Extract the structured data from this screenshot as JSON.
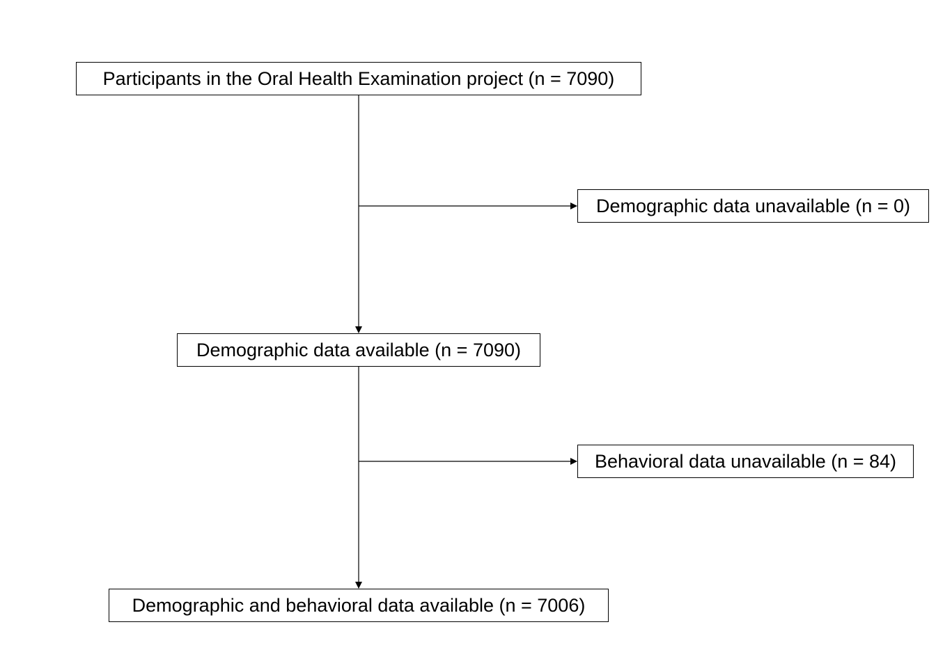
{
  "flowchart": {
    "participants": "Participants in the Oral Health Examination project (n = 7090)",
    "demographic_unavailable": "Demographic data unavailable (n = 0)",
    "demographic_available": "Demographic data available (n = 7090)",
    "behavioral_unavailable": "Behavioral data unavailable (n = 84)",
    "final_sample": "Demographic and behavioral data available (n = 7006)"
  },
  "colors": {
    "line": "#000000",
    "box_border": "#000000",
    "background": "#ffffff"
  }
}
